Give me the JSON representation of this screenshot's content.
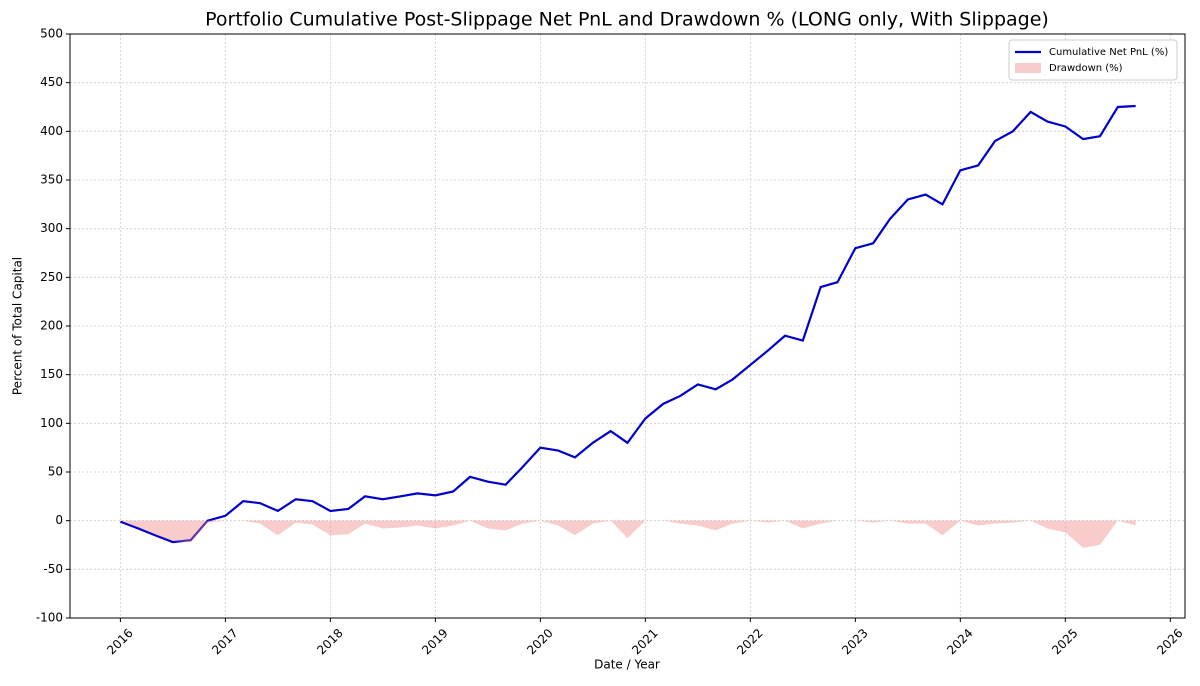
{
  "chart_data": {
    "type": "line",
    "title": "Portfolio Cumulative Post-Slippage Net PnL and Drawdown % (LONG only, With Slippage)",
    "x_label": "Date / Year",
    "y_label": "Percent of Total Capital",
    "x": [
      2016,
      2016.17,
      2016.33,
      2016.5,
      2016.67,
      2016.83,
      2017,
      2017.17,
      2017.33,
      2017.5,
      2017.67,
      2017.83,
      2018,
      2018.17,
      2018.33,
      2018.5,
      2018.67,
      2018.83,
      2019,
      2019.17,
      2019.33,
      2019.5,
      2019.67,
      2019.83,
      2020,
      2020.17,
      2020.33,
      2020.5,
      2020.67,
      2020.83,
      2021,
      2021.17,
      2021.33,
      2021.5,
      2021.67,
      2021.83,
      2022,
      2022.17,
      2022.33,
      2022.5,
      2022.67,
      2022.83,
      2023,
      2023.17,
      2023.33,
      2023.5,
      2023.67,
      2023.83,
      2024,
      2024.17,
      2024.33,
      2024.5,
      2024.67,
      2024.83,
      2025,
      2025.17,
      2025.33,
      2025.5,
      2025.67
    ],
    "series": [
      {
        "name": "Cumulative Net PnL (%)",
        "type": "line",
        "color": "#0000cd",
        "values": [
          -1,
          -8,
          -15,
          -22,
          -20,
          0,
          5,
          20,
          18,
          10,
          22,
          20,
          10,
          12,
          25,
          22,
          25,
          28,
          26,
          30,
          45,
          40,
          37,
          55,
          75,
          72,
          65,
          80,
          92,
          80,
          105,
          120,
          128,
          140,
          135,
          145,
          160,
          175,
          190,
          185,
          240,
          245,
          280,
          285,
          310,
          330,
          335,
          325,
          360,
          365,
          390,
          400,
          420,
          410,
          405,
          392,
          395,
          425,
          426
        ]
      },
      {
        "name": "Drawdown (%)",
        "type": "area",
        "color": "#f08080",
        "values": [
          0,
          -7,
          -14,
          -21,
          -22,
          -2,
          0,
          0,
          -3,
          -15,
          -2,
          -4,
          -15,
          -14,
          -3,
          -8,
          -7,
          -5,
          -8,
          -5,
          0,
          -8,
          -10,
          -3,
          0,
          -5,
          -15,
          -3,
          0,
          -18,
          0,
          0,
          -3,
          -5,
          -10,
          -3,
          0,
          -2,
          0,
          -8,
          -3,
          0,
          0,
          -2,
          0,
          -3,
          -3,
          -15,
          0,
          -5,
          -3,
          -2,
          0,
          -8,
          -12,
          -28,
          -25,
          0,
          -5
        ]
      }
    ],
    "xlim": [
      2015.52,
      2026.14
    ],
    "xticks": [
      2016,
      2017,
      2018,
      2019,
      2020,
      2021,
      2022,
      2023,
      2024,
      2025,
      2026
    ],
    "ylim": [
      -100,
      500
    ],
    "yticks": [
      -100,
      -50,
      0,
      50,
      100,
      150,
      200,
      250,
      300,
      350,
      400,
      450,
      500
    ],
    "grid": true,
    "legend": "upper right"
  }
}
